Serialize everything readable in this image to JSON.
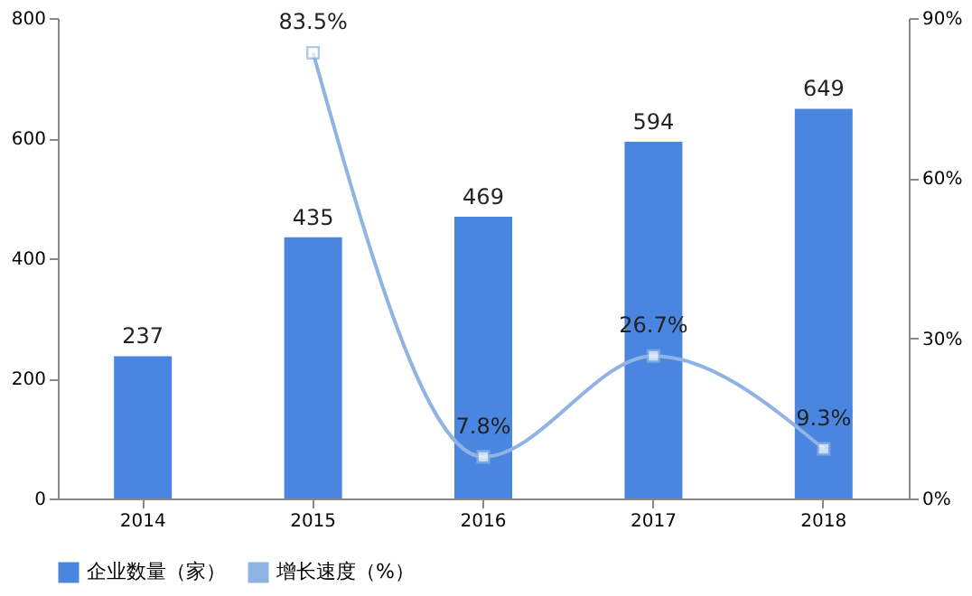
{
  "chart_data": {
    "type": "bar",
    "categories": [
      "2014",
      "2015",
      "2016",
      "2017",
      "2018"
    ],
    "series": [
      {
        "name": "企业数量（家）",
        "color": "#4a86e0",
        "values": [
          237,
          435,
          469,
          594,
          649
        ],
        "value_labels": [
          "237",
          "435",
          "469",
          "594",
          "649"
        ]
      },
      {
        "name": "增长速度（%）",
        "type": "line",
        "axis": "y2",
        "color": "#8fb4e3",
        "marker": "square",
        "values": [
          null,
          83.5,
          7.8,
          26.7,
          9.3
        ],
        "value_labels": [
          null,
          "83.5%",
          "7.8%",
          "26.7%",
          "9.3%"
        ]
      }
    ],
    "ylim": [
      0,
      800
    ],
    "yticks": [
      0,
      200,
      400,
      600,
      800
    ],
    "y2lim": [
      0,
      90
    ],
    "y2ticks": [
      {
        "value": 0,
        "label": "0%"
      },
      {
        "value": 30,
        "label": "30%"
      },
      {
        "value": 60,
        "label": "60%"
      },
      {
        "value": 90,
        "label": "90%"
      }
    ],
    "grid": false,
    "legend": "bottom"
  }
}
